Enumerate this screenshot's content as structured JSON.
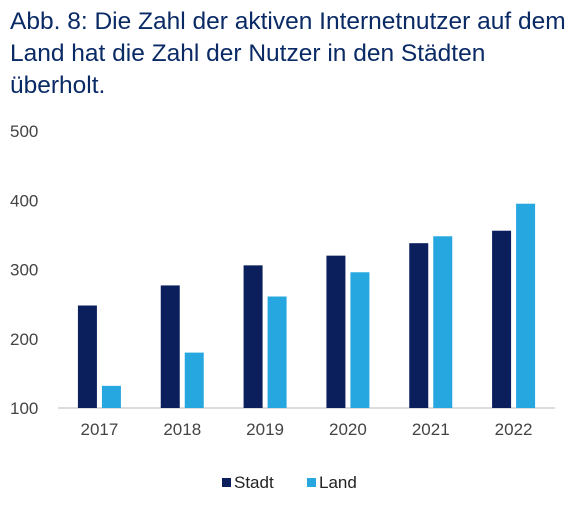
{
  "title": "Abb. 8: Die Zahl der aktiven Internetnutzer auf dem Land hat die Zahl der Nutzer in den Städten überholt.",
  "chart_data": {
    "type": "bar",
    "categories": [
      "2017",
      "2018",
      "2019",
      "2020",
      "2021",
      "2022"
    ],
    "series": [
      {
        "name": "Stadt",
        "color": "#0b1f5c",
        "values": [
          248,
          277,
          306,
          320,
          338,
          356
        ]
      },
      {
        "name": "Land",
        "color": "#27a7df",
        "values": [
          132,
          180,
          261,
          296,
          348,
          395
        ]
      }
    ],
    "ylim": [
      100,
      500
    ],
    "yticks": [
      100,
      200,
      300,
      400,
      500
    ],
    "grid": false,
    "legend": "bottom-center"
  }
}
